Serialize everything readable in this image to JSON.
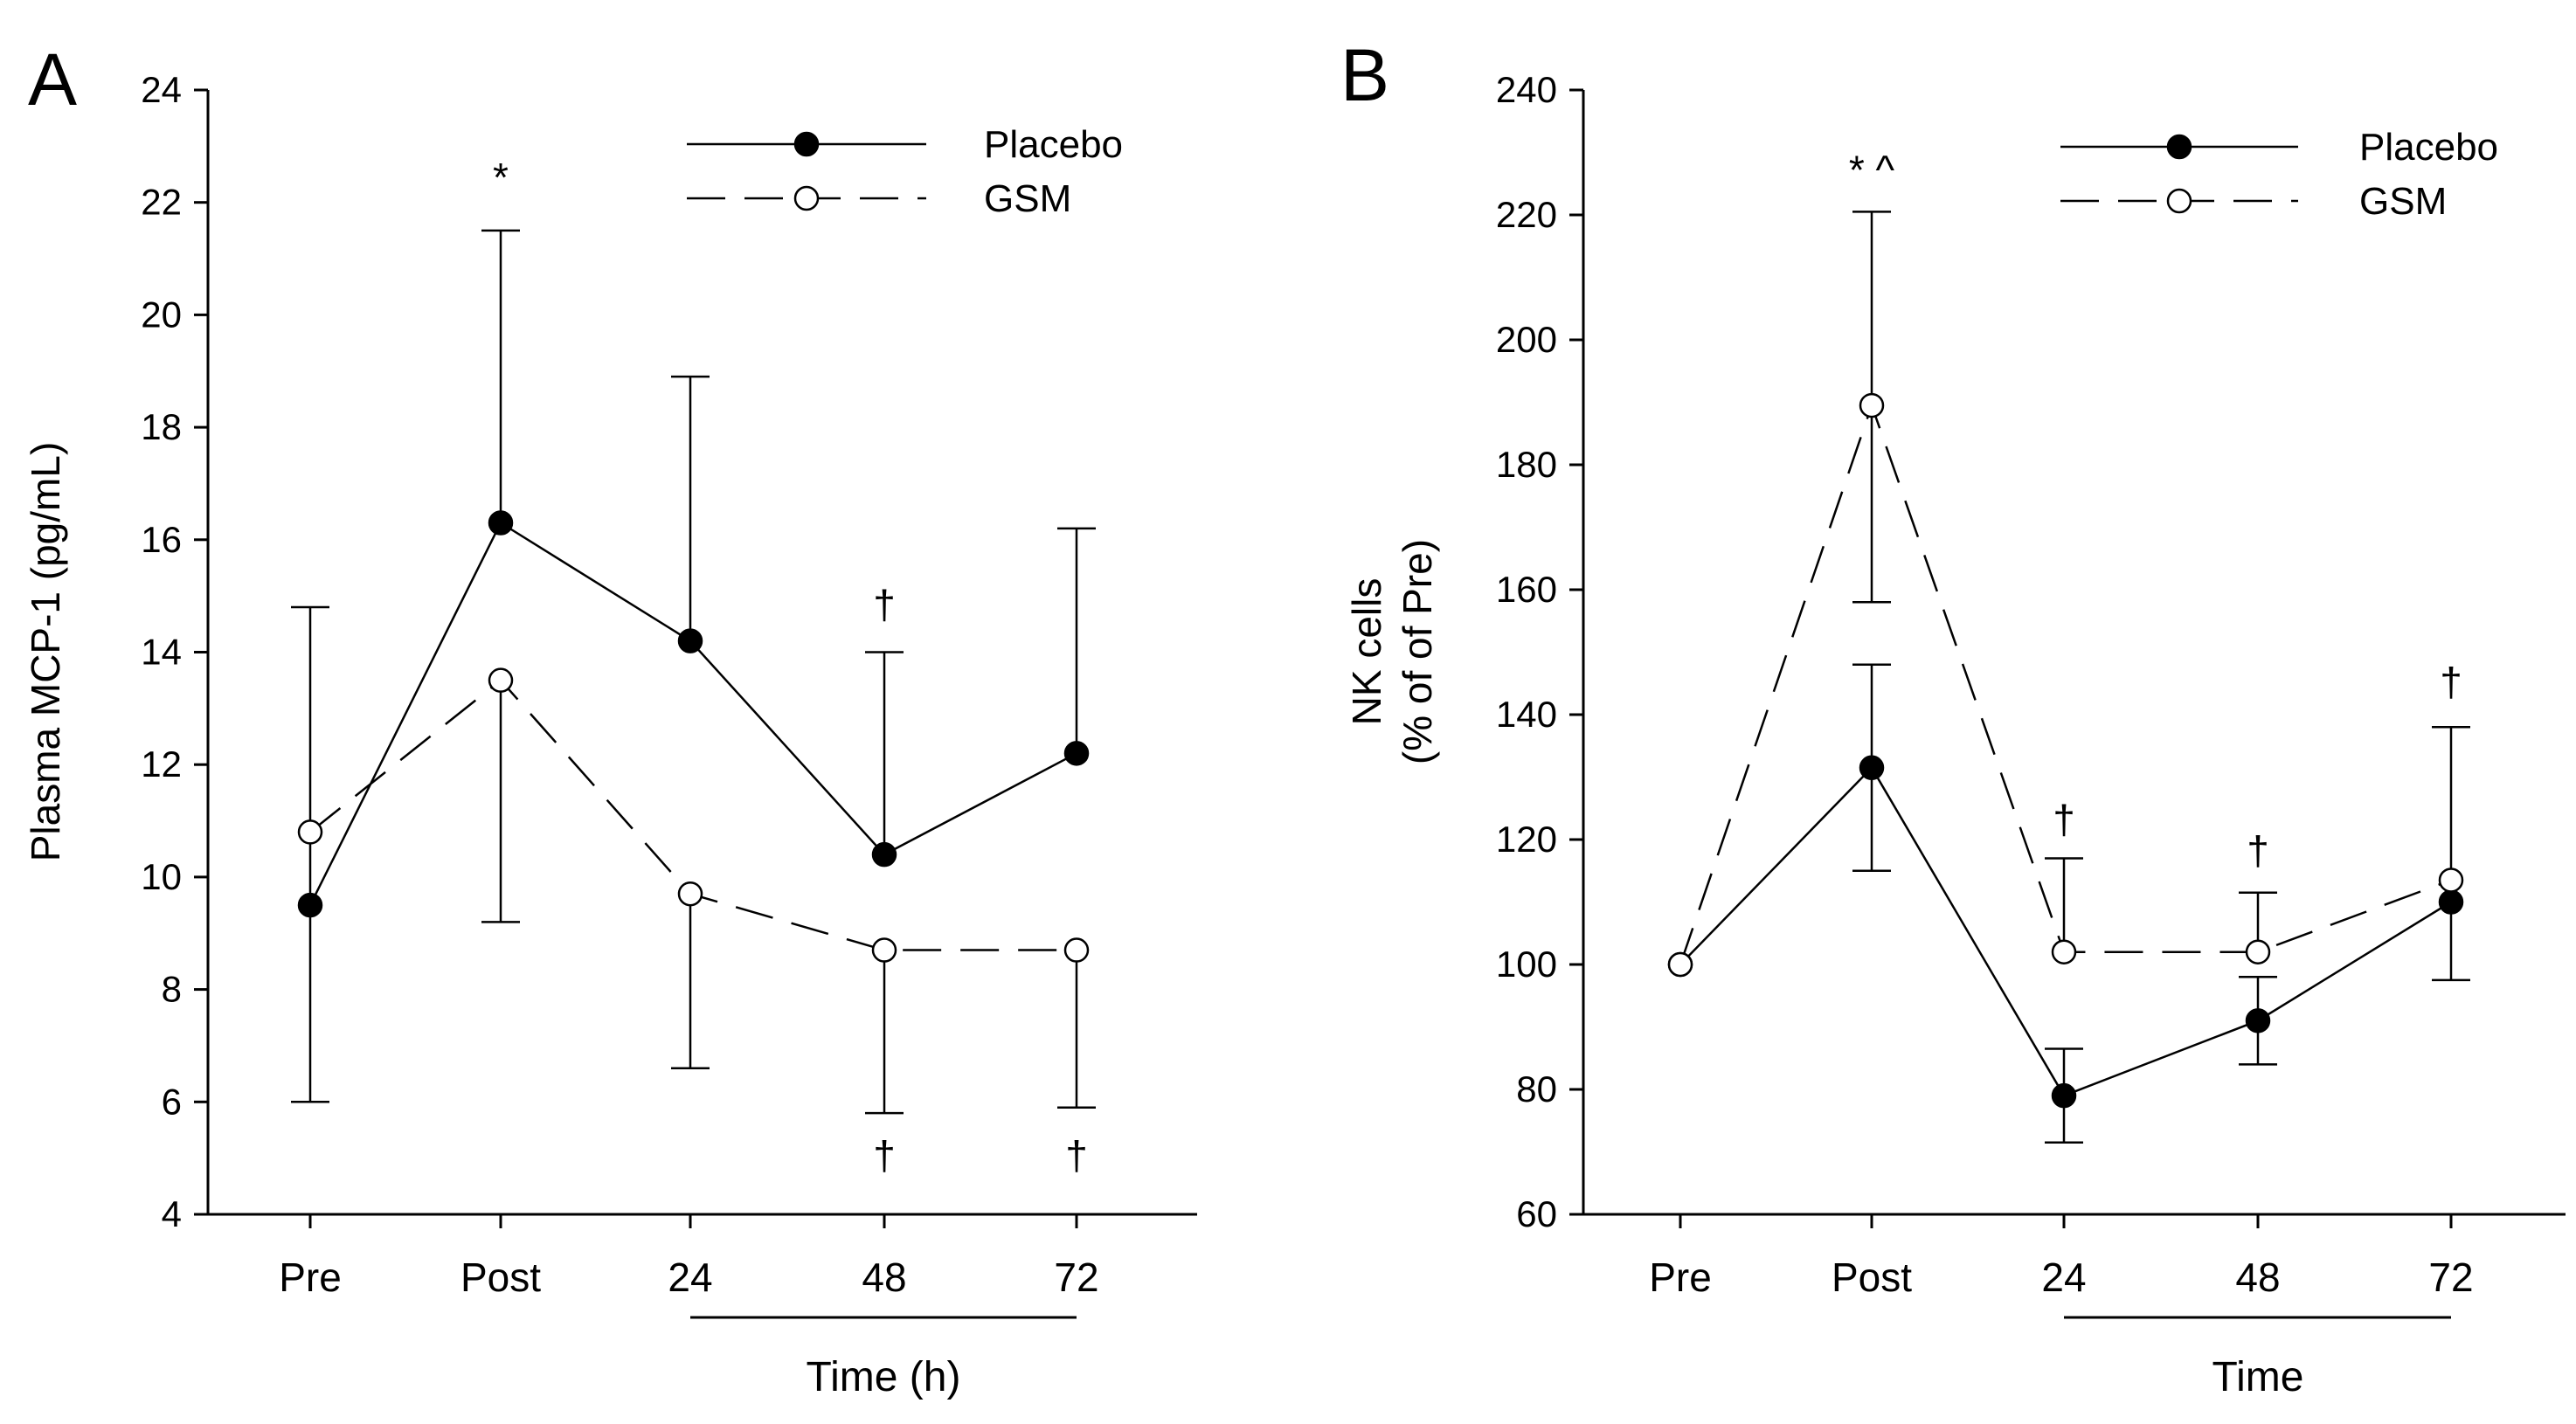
{
  "colors": {
    "ink": "#000000",
    "background": "#ffffff",
    "open_marker_fill": "#ffffff"
  },
  "chart_data": [
    {
      "panel": "A",
      "type": "line",
      "categories": [
        "Pre",
        "Post",
        "24",
        "48",
        "72"
      ],
      "xlabel": "Time (h)",
      "ylabel": "Plasma MCP-1 (pg/mL)",
      "ylim": [
        4,
        24
      ],
      "yticks": [
        4,
        6,
        8,
        10,
        12,
        14,
        16,
        18,
        20,
        22,
        24
      ],
      "grid": false,
      "legend_position": "top-right",
      "bracket_under": [
        "24",
        "72"
      ],
      "series": [
        {
          "name": "Placebo",
          "marker": "filled-circle",
          "line": "solid",
          "values": [
            9.5,
            16.3,
            14.2,
            10.4,
            12.2
          ],
          "error_upper": [
            14.8,
            21.5,
            18.9,
            14.0,
            16.2
          ],
          "error_lower": [
            6.0,
            null,
            null,
            null,
            null
          ]
        },
        {
          "name": "GSM",
          "marker": "open-circle",
          "line": "dashed",
          "values": [
            10.8,
            13.5,
            9.7,
            8.7,
            8.7
          ],
          "error_upper": [
            null,
            null,
            null,
            null,
            null
          ],
          "error_lower": [
            null,
            9.2,
            6.6,
            5.8,
            5.9
          ]
        }
      ],
      "annotations": [
        {
          "text": "*",
          "category": "Post",
          "y": 22.2
        },
        {
          "text": "†",
          "category": "48",
          "y": 14.6
        },
        {
          "text": "†",
          "category": "48",
          "y": 4.8
        },
        {
          "text": "†",
          "category": "72",
          "y": 4.8
        }
      ]
    },
    {
      "panel": "B",
      "type": "line",
      "categories": [
        "Pre",
        "Post",
        "24",
        "48",
        "72"
      ],
      "xlabel": "Time",
      "ylabel": [
        "NK cells",
        "(% of of Pre)"
      ],
      "ylim": [
        60,
        240
      ],
      "yticks": [
        60,
        80,
        100,
        120,
        140,
        160,
        180,
        200,
        220,
        240
      ],
      "grid": false,
      "legend_position": "top-right",
      "bracket_under": [
        "24",
        "72"
      ],
      "series": [
        {
          "name": "Placebo",
          "marker": "filled-circle",
          "line": "solid",
          "values": [
            100,
            131.5,
            79,
            91,
            110
          ],
          "error_upper": [
            null,
            148,
            86.5,
            98,
            null
          ],
          "error_lower": [
            null,
            115,
            71.5,
            84,
            97.5
          ]
        },
        {
          "name": "GSM",
          "marker": "open-circle",
          "line": "dashed",
          "values": [
            100,
            189.5,
            102,
            102,
            113.5
          ],
          "error_upper": [
            null,
            220.5,
            117,
            111.5,
            138
          ],
          "error_lower": [
            null,
            158,
            null,
            null,
            null
          ]
        }
      ],
      "annotations": [
        {
          "text": "* ^",
          "category": "Post",
          "y": 225
        },
        {
          "text": "†",
          "category": "24",
          "y": 121
        },
        {
          "text": "†",
          "category": "48",
          "y": 116
        },
        {
          "text": "†",
          "category": "72",
          "y": 143
        }
      ]
    }
  ]
}
